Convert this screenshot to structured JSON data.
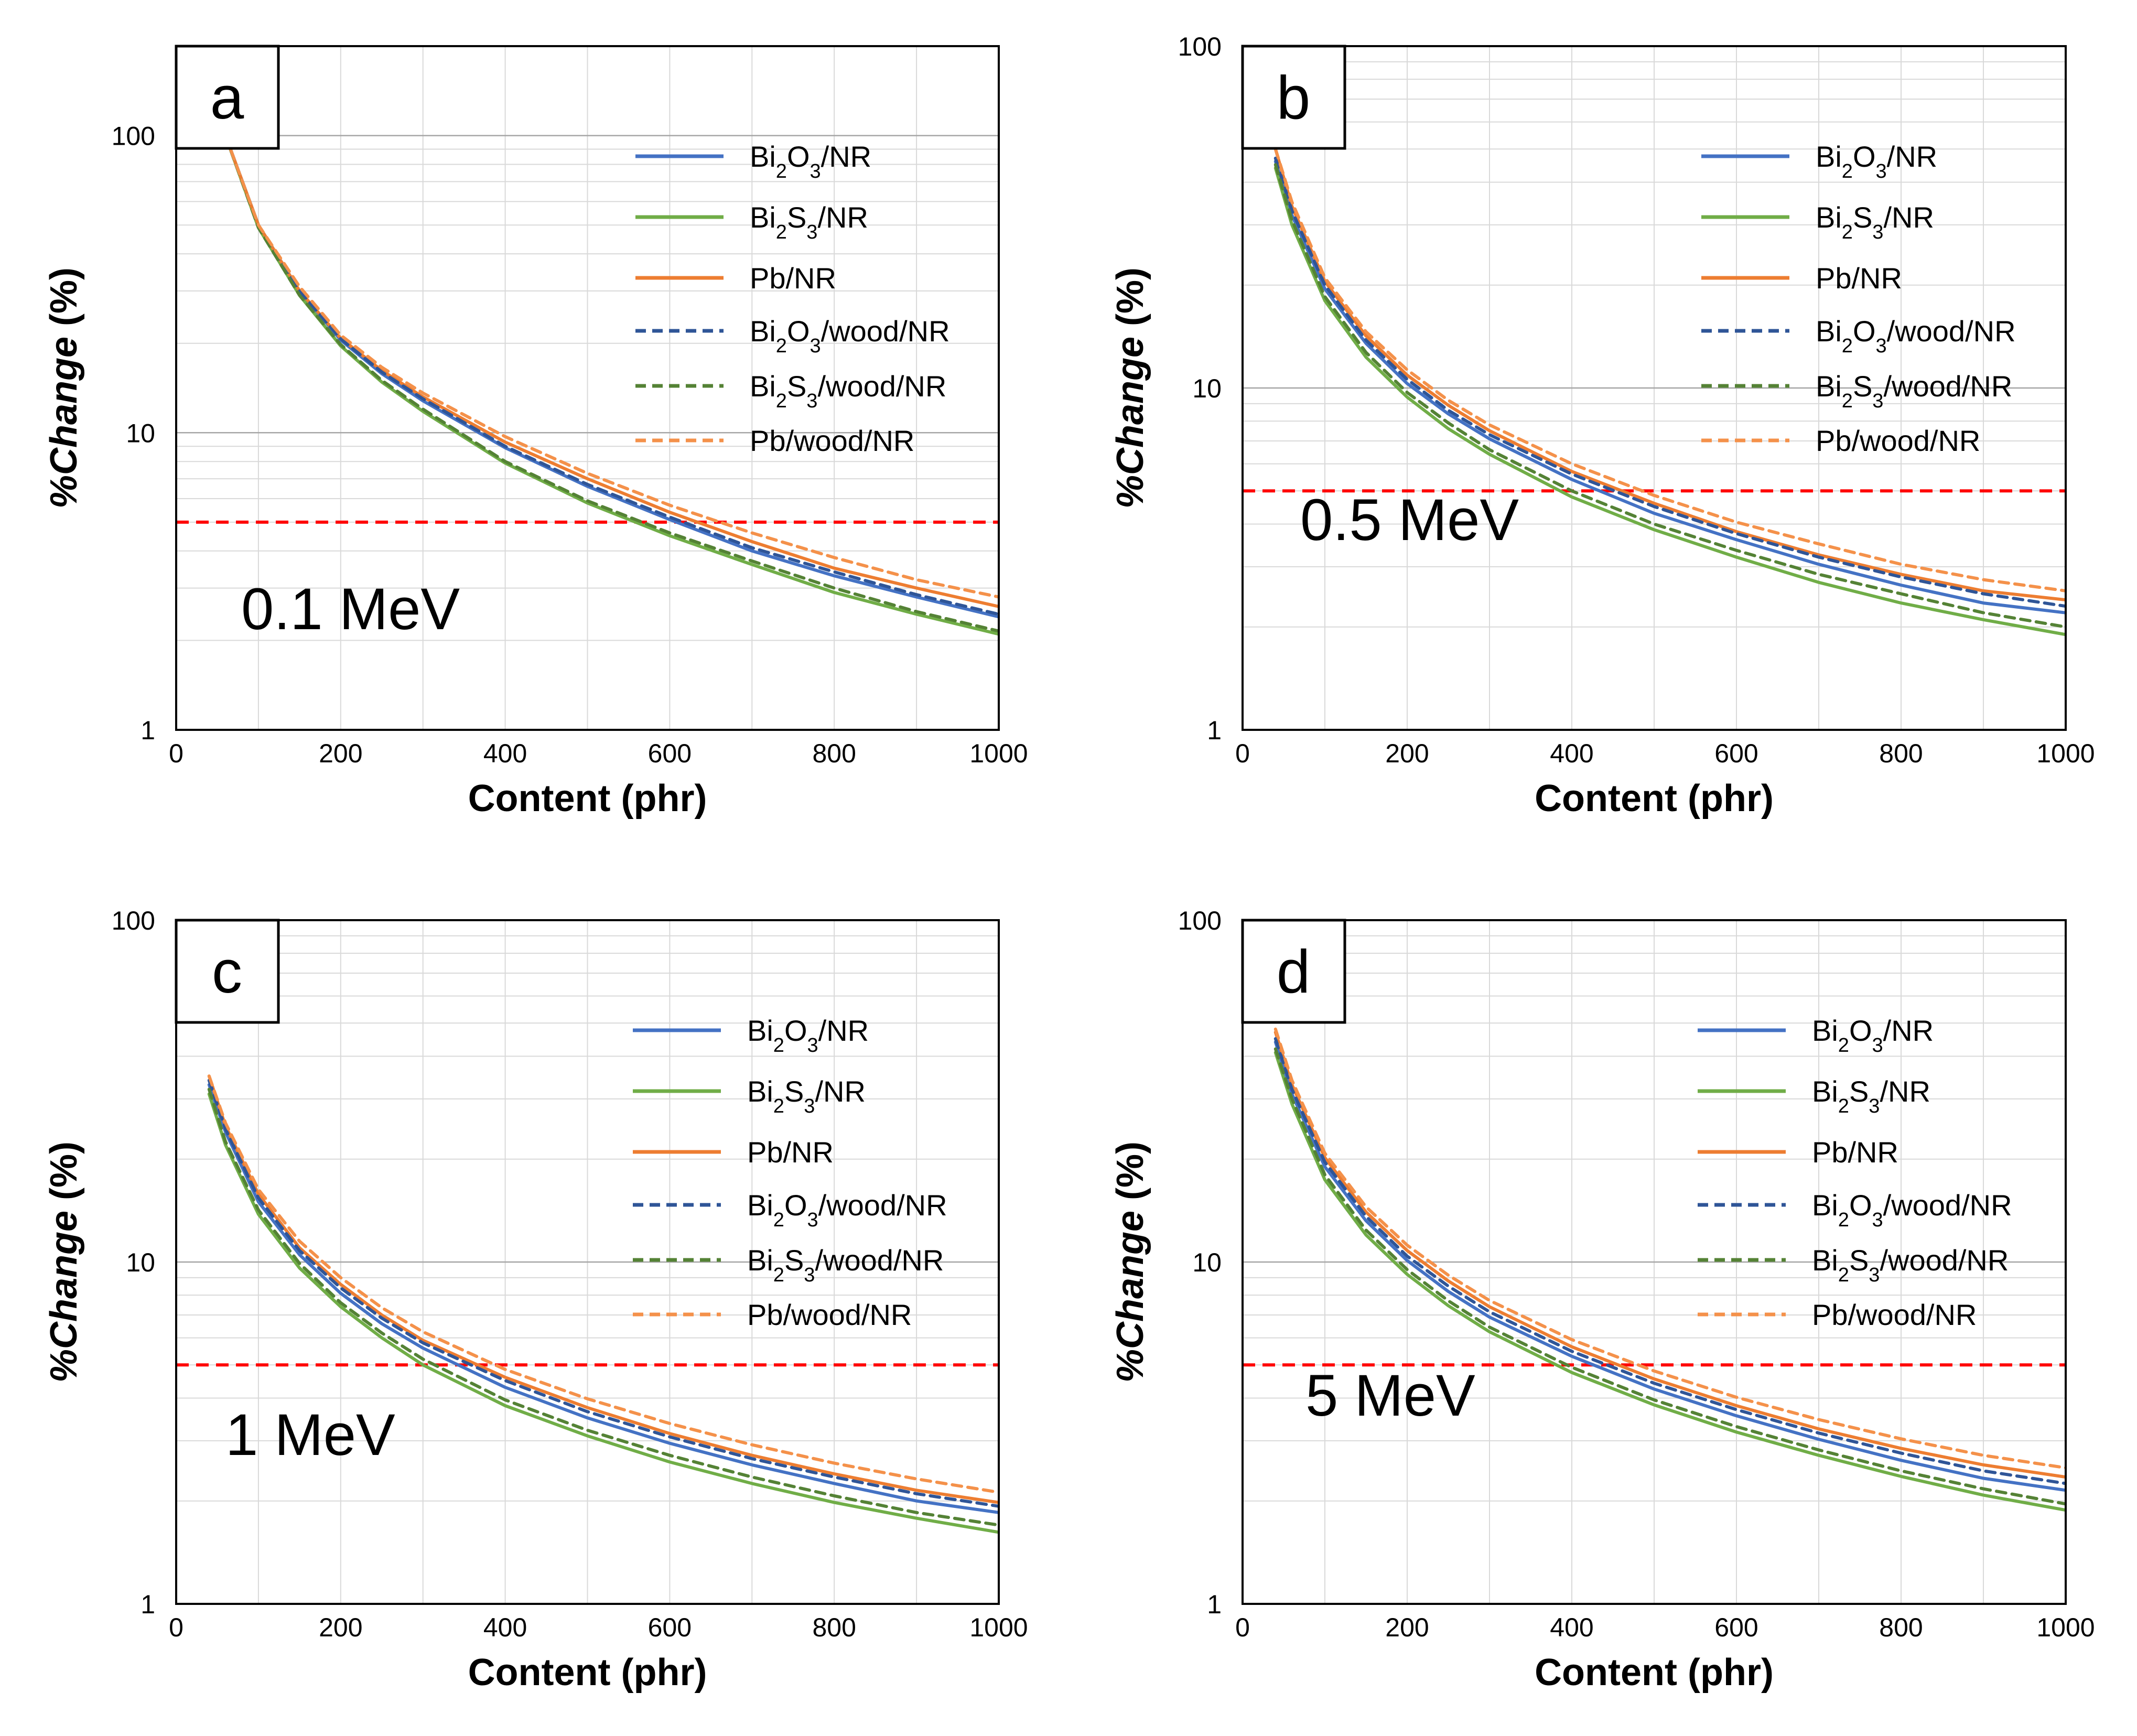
{
  "chart_data": [
    {
      "type": "line",
      "panel_label": "a",
      "annotation": "0.1 MeV",
      "xlabel": "Content (phr)",
      "ylabel": "%Change (%)",
      "xlim": [
        0,
        1000
      ],
      "ylim": [
        1,
        200
      ],
      "yscale": "log",
      "x_ticks": [
        "0",
        "200",
        "400",
        "600",
        "800",
        "1000"
      ],
      "y_ticks": [
        "1",
        "10",
        "100"
      ],
      "grid": true,
      "legend_position": "top-right",
      "reference_line": {
        "y": 5,
        "color": "#ff0000",
        "style": "dashed"
      },
      "x": [
        60,
        100,
        150,
        200,
        250,
        300,
        400,
        500,
        600,
        700,
        800,
        900,
        1000
      ],
      "series": [
        {
          "name_parts": [
            "Bi",
            "2",
            "O",
            "3",
            "/NR"
          ],
          "color": "#4472c4",
          "dash": false,
          "values": [
            100,
            50,
            30,
            20.5,
            15.8,
            12.8,
            8.9,
            6.6,
            5.1,
            4.0,
            3.3,
            2.8,
            2.4
          ]
        },
        {
          "name_parts": [
            "Bi",
            "2",
            "S",
            "3",
            "/NR"
          ],
          "color": "#70ad47",
          "dash": false,
          "values": [
            100,
            49,
            29,
            19.6,
            14.8,
            11.8,
            7.9,
            5.8,
            4.5,
            3.6,
            2.9,
            2.45,
            2.1
          ]
        },
        {
          "name_parts": [
            "Pb/NR"
          ],
          "color": "#ed7d31",
          "dash": false,
          "values": [
            100,
            50,
            30,
            20.8,
            16.2,
            13.2,
            9.3,
            7.0,
            5.4,
            4.3,
            3.5,
            3.0,
            2.6
          ]
        },
        {
          "name_parts": [
            "Bi",
            "2",
            "O",
            "3",
            "/wood/NR"
          ],
          "color": "#2f5597",
          "dash": true,
          "values": [
            100,
            50,
            30,
            20.7,
            16.0,
            13.0,
            9.0,
            6.7,
            5.2,
            4.1,
            3.4,
            2.85,
            2.45
          ]
        },
        {
          "name_parts": [
            "Bi",
            "2",
            "S",
            "3",
            "/wood/NR"
          ],
          "color": "#548235",
          "dash": true,
          "values": [
            100,
            49,
            29,
            19.8,
            15.0,
            12.0,
            8.0,
            5.9,
            4.6,
            3.7,
            3.0,
            2.5,
            2.15
          ]
        },
        {
          "name_parts": [
            "Pb/wood/NR"
          ],
          "color": "#f4914a",
          "dash": true,
          "values": [
            100,
            50,
            31,
            21.3,
            16.6,
            13.6,
            9.7,
            7.3,
            5.7,
            4.6,
            3.8,
            3.2,
            2.8
          ]
        }
      ]
    },
    {
      "type": "line",
      "panel_label": "b",
      "annotation": "0.5 MeV",
      "xlabel": "Content (phr)",
      "ylabel": "%Change (%)",
      "xlim": [
        0,
        1000
      ],
      "ylim": [
        1,
        100
      ],
      "yscale": "log",
      "x_ticks": [
        "0",
        "200",
        "400",
        "600",
        "800",
        "1000"
      ],
      "y_ticks": [
        "1",
        "10",
        "100"
      ],
      "grid": true,
      "legend_position": "top-right",
      "reference_line": {
        "y": 5,
        "color": "#ff0000",
        "style": "dashed"
      },
      "x": [
        40,
        60,
        100,
        150,
        200,
        250,
        300,
        400,
        500,
        600,
        700,
        800,
        900,
        1000
      ],
      "series": [
        {
          "name_parts": [
            "Bi",
            "2",
            "O",
            "3",
            "/NR"
          ],
          "color": "#4472c4",
          "dash": false,
          "values": [
            46,
            32,
            19.5,
            13.5,
            10.3,
            8.4,
            7.1,
            5.4,
            4.3,
            3.6,
            3.05,
            2.65,
            2.35,
            2.2
          ]
        },
        {
          "name_parts": [
            "Bi",
            "2",
            "S",
            "3",
            "/NR"
          ],
          "color": "#70ad47",
          "dash": false,
          "values": [
            44,
            30,
            18,
            12.3,
            9.4,
            7.6,
            6.4,
            4.8,
            3.85,
            3.2,
            2.7,
            2.35,
            2.1,
            1.9
          ]
        },
        {
          "name_parts": [
            "Pb/NR"
          ],
          "color": "#ed7d31",
          "dash": false,
          "values": [
            50,
            34,
            20.5,
            14.2,
            10.9,
            8.9,
            7.5,
            5.7,
            4.6,
            3.8,
            3.25,
            2.85,
            2.55,
            2.4
          ]
        },
        {
          "name_parts": [
            "Bi",
            "2",
            "O",
            "3",
            "/wood/NR"
          ],
          "color": "#2f5597",
          "dash": true,
          "values": [
            47,
            33,
            20,
            13.8,
            10.6,
            8.6,
            7.3,
            5.6,
            4.5,
            3.75,
            3.2,
            2.8,
            2.5,
            2.3
          ]
        },
        {
          "name_parts": [
            "Bi",
            "2",
            "S",
            "3",
            "/wood/NR"
          ],
          "color": "#548235",
          "dash": true,
          "values": [
            45,
            31,
            18.5,
            12.7,
            9.7,
            7.9,
            6.6,
            5.0,
            4.0,
            3.35,
            2.85,
            2.5,
            2.2,
            2.0
          ]
        },
        {
          "name_parts": [
            "Pb/wood/NR"
          ],
          "color": "#f4914a",
          "dash": true,
          "values": [
            50,
            35,
            21,
            14.6,
            11.3,
            9.2,
            7.8,
            6.0,
            4.85,
            4.05,
            3.5,
            3.05,
            2.75,
            2.55
          ]
        }
      ]
    },
    {
      "type": "line",
      "panel_label": "c",
      "annotation": "1 MeV",
      "xlabel": "Content (phr)",
      "ylabel": "%Change (%)",
      "xlim": [
        0,
        1000
      ],
      "ylim": [
        1,
        100
      ],
      "yscale": "log",
      "x_ticks": [
        "0",
        "200",
        "400",
        "600",
        "800",
        "1000"
      ],
      "y_ticks": [
        "1",
        "10",
        "100"
      ],
      "grid": true,
      "legend_position": "top-right",
      "reference_line": {
        "y": 5,
        "color": "#ff0000",
        "style": "dashed"
      },
      "x": [
        40,
        60,
        100,
        150,
        200,
        250,
        300,
        400,
        500,
        600,
        700,
        800,
        900,
        1000
      ],
      "series": [
        {
          "name_parts": [
            "Bi",
            "2",
            "O",
            "3",
            "/NR"
          ],
          "color": "#4472c4",
          "dash": false,
          "values": [
            33,
            24,
            15,
            10.5,
            8.1,
            6.6,
            5.6,
            4.3,
            3.5,
            2.95,
            2.55,
            2.25,
            2.0,
            1.85
          ]
        },
        {
          "name_parts": [
            "Bi",
            "2",
            "S",
            "3",
            "/NR"
          ],
          "color": "#70ad47",
          "dash": false,
          "values": [
            31,
            22,
            13.8,
            9.6,
            7.4,
            6.0,
            5.0,
            3.8,
            3.1,
            2.6,
            2.25,
            1.98,
            1.78,
            1.62
          ]
        },
        {
          "name_parts": [
            "Pb/NR"
          ],
          "color": "#ed7d31",
          "dash": false,
          "values": [
            35,
            25,
            15.8,
            11.0,
            8.6,
            7.0,
            5.9,
            4.6,
            3.75,
            3.15,
            2.72,
            2.4,
            2.15,
            1.98
          ]
        },
        {
          "name_parts": [
            "Bi",
            "2",
            "O",
            "3",
            "/wood/NR"
          ],
          "color": "#2f5597",
          "dash": true,
          "values": [
            34,
            24.5,
            15.4,
            10.8,
            8.4,
            6.85,
            5.8,
            4.5,
            3.65,
            3.08,
            2.66,
            2.35,
            2.1,
            1.93
          ]
        },
        {
          "name_parts": [
            "Bi",
            "2",
            "S",
            "3",
            "/wood/NR"
          ],
          "color": "#548235",
          "dash": true,
          "values": [
            32,
            22.5,
            14.2,
            9.9,
            7.6,
            6.2,
            5.2,
            3.95,
            3.22,
            2.72,
            2.35,
            2.07,
            1.85,
            1.7
          ]
        },
        {
          "name_parts": [
            "Pb/wood/NR"
          ],
          "color": "#f4914a",
          "dash": true,
          "values": [
            35,
            25.5,
            16.3,
            11.5,
            9.0,
            7.35,
            6.25,
            4.85,
            3.98,
            3.37,
            2.92,
            2.58,
            2.32,
            2.12
          ]
        }
      ]
    },
    {
      "type": "line",
      "panel_label": "d",
      "annotation": "5 MeV",
      "xlabel": "Content (phr)",
      "ylabel": "%Change (%)",
      "xlim": [
        0,
        1000
      ],
      "ylim": [
        1,
        100
      ],
      "yscale": "log",
      "x_ticks": [
        "0",
        "200",
        "400",
        "600",
        "800",
        "1000"
      ],
      "y_ticks": [
        "1",
        "10",
        "100"
      ],
      "grid": true,
      "legend_position": "top-right",
      "reference_line": {
        "y": 5,
        "color": "#ff0000",
        "style": "dashed"
      },
      "x": [
        40,
        60,
        100,
        150,
        200,
        250,
        300,
        400,
        500,
        600,
        700,
        800,
        900,
        1000
      ],
      "series": [
        {
          "name_parts": [
            "Bi",
            "2",
            "O",
            "3",
            "/NR"
          ],
          "color": "#4472c4",
          "dash": false,
          "values": [
            44,
            31,
            19,
            13.2,
            10.1,
            8.2,
            6.9,
            5.3,
            4.25,
            3.55,
            3.03,
            2.63,
            2.33,
            2.15
          ]
        },
        {
          "name_parts": [
            "Bi",
            "2",
            "S",
            "3",
            "/NR"
          ],
          "color": "#70ad47",
          "dash": false,
          "values": [
            41,
            29,
            17.4,
            12.0,
            9.2,
            7.45,
            6.25,
            4.75,
            3.82,
            3.18,
            2.72,
            2.36,
            2.08,
            1.88
          ]
        },
        {
          "name_parts": [
            "Pb/NR"
          ],
          "color": "#ed7d31",
          "dash": false,
          "values": [
            47,
            33,
            20.2,
            14.0,
            10.8,
            8.8,
            7.4,
            5.65,
            4.55,
            3.8,
            3.25,
            2.85,
            2.55,
            2.35
          ]
        },
        {
          "name_parts": [
            "Bi",
            "2",
            "O",
            "3",
            "/wood/NR"
          ],
          "color": "#2f5597",
          "dash": true,
          "values": [
            45,
            32,
            19.6,
            13.6,
            10.4,
            8.5,
            7.15,
            5.48,
            4.42,
            3.7,
            3.16,
            2.76,
            2.45,
            2.25
          ]
        },
        {
          "name_parts": [
            "Bi",
            "2",
            "S",
            "3",
            "/wood/NR"
          ],
          "color": "#548235",
          "dash": true,
          "values": [
            42,
            30,
            18.0,
            12.4,
            9.5,
            7.7,
            6.45,
            4.92,
            3.95,
            3.3,
            2.82,
            2.45,
            2.17,
            1.96
          ]
        },
        {
          "name_parts": [
            "Pb/wood/NR"
          ],
          "color": "#f4914a",
          "dash": true,
          "values": [
            48,
            34,
            20.8,
            14.5,
            11.2,
            9.15,
            7.72,
            5.93,
            4.8,
            4.02,
            3.46,
            3.04,
            2.72,
            2.5
          ]
        }
      ]
    }
  ]
}
